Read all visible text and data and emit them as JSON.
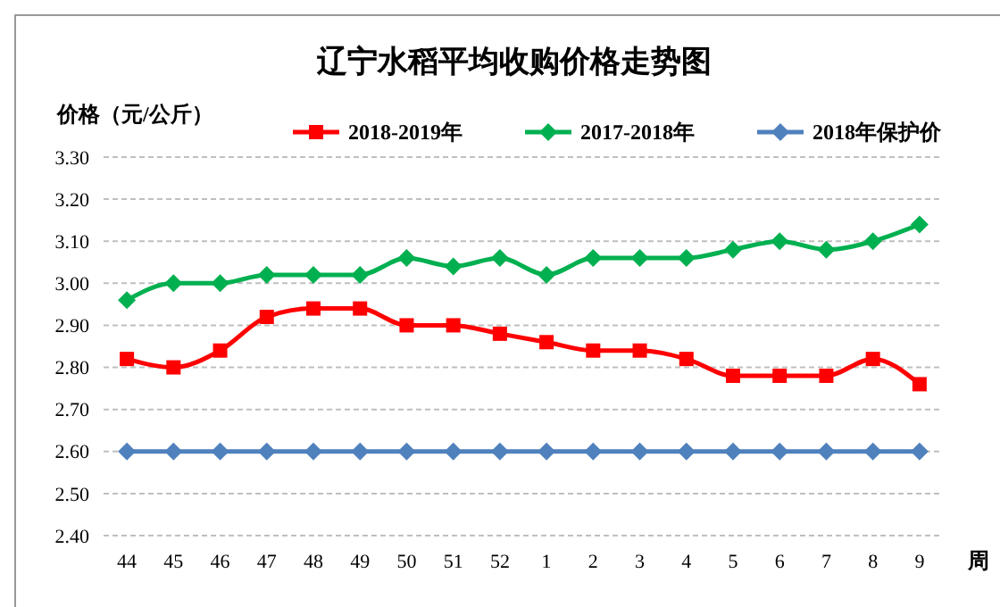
{
  "chart_data": {
    "type": "line",
    "title": "辽宁水稻平均收购价格走势图",
    "ylabel": "价格（元/公斤）",
    "xlabel": "周",
    "categories": [
      "44",
      "45",
      "46",
      "47",
      "48",
      "49",
      "50",
      "51",
      "52",
      "1",
      "2",
      "3",
      "4",
      "5",
      "6",
      "7",
      "8",
      "9"
    ],
    "series": [
      {
        "name": "2018-2019年",
        "color": "#ff0000",
        "marker": "square",
        "values": [
          2.82,
          2.8,
          2.84,
          2.92,
          2.94,
          2.94,
          2.9,
          2.9,
          2.88,
          2.86,
          2.84,
          2.84,
          2.82,
          2.78,
          2.78,
          2.78,
          2.82,
          2.76
        ]
      },
      {
        "name": "2017-2018年",
        "color": "#00b050",
        "marker": "diamond",
        "values": [
          2.96,
          3.0,
          3.0,
          3.02,
          3.02,
          3.02,
          3.06,
          3.04,
          3.06,
          3.02,
          3.06,
          3.06,
          3.06,
          3.08,
          3.1,
          3.08,
          3.1,
          3.14
        ]
      },
      {
        "name": "2018年保护价",
        "color": "#4f81bd",
        "marker": "diamond",
        "values": [
          2.6,
          2.6,
          2.6,
          2.6,
          2.6,
          2.6,
          2.6,
          2.6,
          2.6,
          2.6,
          2.6,
          2.6,
          2.6,
          2.6,
          2.6,
          2.6,
          2.6,
          2.6
        ]
      }
    ],
    "ylim": [
      2.4,
      3.3
    ],
    "yticks": [
      {
        "value": 2.4,
        "label": "2.40"
      },
      {
        "value": 2.5,
        "label": "2.50"
      },
      {
        "value": 2.6,
        "label": "2.60"
      },
      {
        "value": 2.7,
        "label": "2.70"
      },
      {
        "value": 2.8,
        "label": "2.80"
      },
      {
        "value": 2.9,
        "label": "2.90"
      },
      {
        "value": 3.0,
        "label": "3.00"
      },
      {
        "value": 3.1,
        "label": "3.10"
      },
      {
        "value": 3.2,
        "label": "3.20"
      },
      {
        "value": 3.3,
        "label": "3.30"
      }
    ],
    "grid": "y",
    "legend": "top right"
  }
}
